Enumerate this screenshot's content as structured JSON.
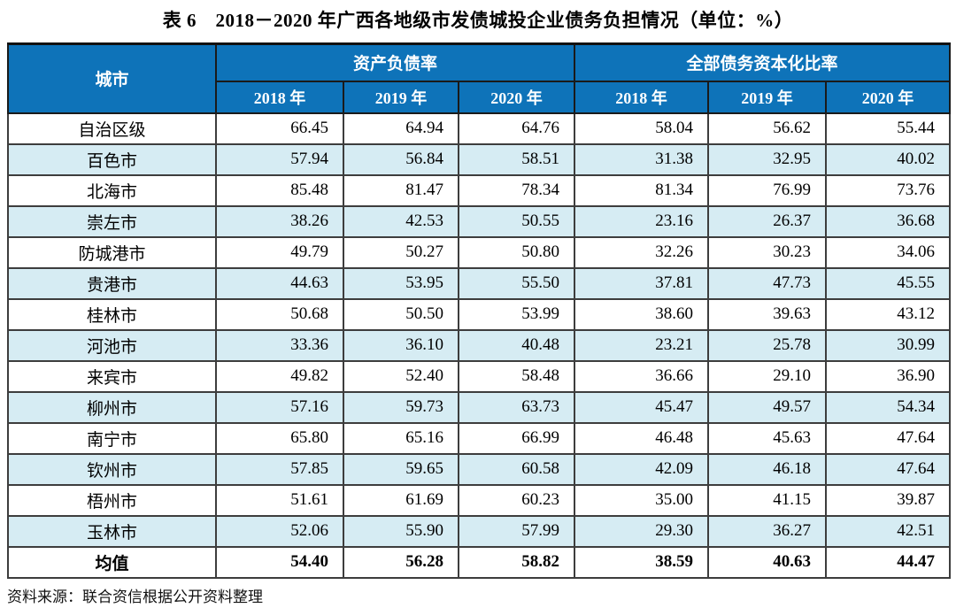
{
  "title": "表 6　2018－2020 年广西各地级市发债城投企业债务负担情况（单位：%）",
  "table": {
    "city_header": "城市",
    "group_headers": [
      "资产负债率",
      "全部债务资本化比率"
    ],
    "year_headers": [
      "2018 年",
      "2019 年",
      "2020 年",
      "2018 年",
      "2019 年",
      "2020 年"
    ],
    "rows": [
      {
        "city": "自治区级",
        "values": [
          "66.45",
          "64.94",
          "64.76",
          "58.04",
          "56.62",
          "55.44"
        ]
      },
      {
        "city": "百色市",
        "values": [
          "57.94",
          "56.84",
          "58.51",
          "31.38",
          "32.95",
          "40.02"
        ]
      },
      {
        "city": "北海市",
        "values": [
          "85.48",
          "81.47",
          "78.34",
          "81.34",
          "76.99",
          "73.76"
        ]
      },
      {
        "city": "崇左市",
        "values": [
          "38.26",
          "42.53",
          "50.55",
          "23.16",
          "26.37",
          "36.68"
        ]
      },
      {
        "city": "防城港市",
        "values": [
          "49.79",
          "50.27",
          "50.80",
          "32.26",
          "30.23",
          "34.06"
        ]
      },
      {
        "city": "贵港市",
        "values": [
          "44.63",
          "53.95",
          "55.50",
          "37.81",
          "47.73",
          "45.55"
        ]
      },
      {
        "city": "桂林市",
        "values": [
          "50.68",
          "50.50",
          "53.99",
          "38.60",
          "39.63",
          "43.12"
        ]
      },
      {
        "city": "河池市",
        "values": [
          "33.36",
          "36.10",
          "40.48",
          "23.21",
          "25.78",
          "30.99"
        ]
      },
      {
        "city": "来宾市",
        "values": [
          "49.82",
          "52.40",
          "58.48",
          "36.66",
          "29.10",
          "36.90"
        ]
      },
      {
        "city": "柳州市",
        "values": [
          "57.16",
          "59.73",
          "63.73",
          "45.47",
          "49.57",
          "54.34"
        ]
      },
      {
        "city": "南宁市",
        "values": [
          "65.80",
          "65.16",
          "66.99",
          "46.48",
          "45.63",
          "47.64"
        ]
      },
      {
        "city": "钦州市",
        "values": [
          "57.85",
          "59.65",
          "60.58",
          "42.09",
          "46.18",
          "47.64"
        ]
      },
      {
        "city": "梧州市",
        "values": [
          "51.61",
          "61.69",
          "60.23",
          "35.00",
          "41.15",
          "39.87"
        ]
      },
      {
        "city": "玉林市",
        "values": [
          "52.06",
          "55.90",
          "57.99",
          "29.30",
          "36.27",
          "42.51"
        ]
      },
      {
        "city": "均值",
        "values": [
          "54.40",
          "56.28",
          "58.82",
          "38.59",
          "40.63",
          "44.47"
        ],
        "bold": true
      }
    ]
  },
  "footer": "资料来源：联合资信根据公开资料整理",
  "colors": {
    "header_bg": "#0e73b9",
    "header_text": "#ffffff",
    "stripe_bg": "#d6ecf3",
    "border": "#3d3d3d"
  }
}
